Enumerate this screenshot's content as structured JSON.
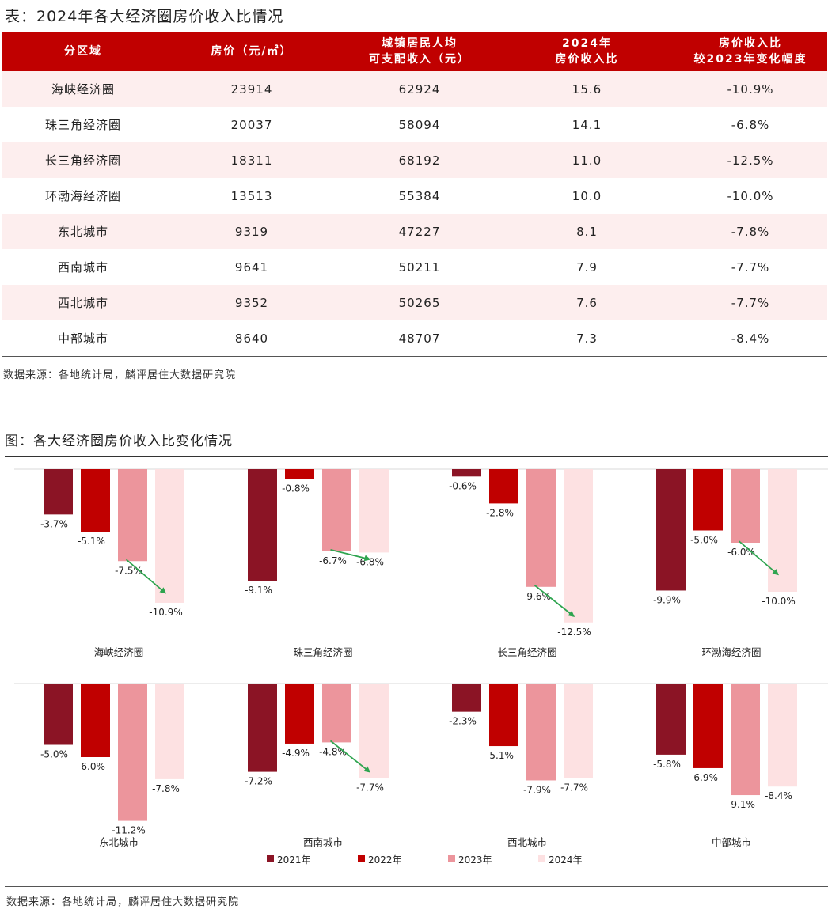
{
  "table": {
    "title": "表：2024年各大经济圈房价收入比情况",
    "headers": [
      "分区域",
      "房价（元/㎡）",
      "城镇居民人均\n可支配收入（元）",
      "2024年\n房价收入比",
      "房价收入比\n较2023年变化幅度"
    ],
    "rows": [
      [
        "海峡经济圈",
        "23914",
        "62924",
        "15.6",
        "-10.9%"
      ],
      [
        "珠三角经济圈",
        "20037",
        "58094",
        "14.1",
        "-6.8%"
      ],
      [
        "长三角经济圈",
        "18311",
        "68192",
        "11.0",
        "-12.5%"
      ],
      [
        "环渤海经济圈",
        "13513",
        "55384",
        "10.0",
        "-10.0%"
      ],
      [
        "东北城市",
        "9319",
        "47227",
        "8.1",
        "-7.8%"
      ],
      [
        "西南城市",
        "9641",
        "50211",
        "7.9",
        "-7.7%"
      ],
      [
        "西北城市",
        "9352",
        "50265",
        "7.6",
        "-7.7%"
      ],
      [
        "中部城市",
        "8640",
        "48707",
        "7.3",
        "-8.4%"
      ]
    ],
    "source": "数据来源：各地统计局，麟评居住大数据研究院"
  },
  "chart": {
    "title": "图：各大经济圈房价收入比变化情况",
    "source": "数据来源：各地统计局，麟评居住大数据研究院"
  },
  "chart_data": {
    "type": "bar",
    "title": "图：各大经济圈房价收入比变化情况",
    "unit": "%",
    "legend_position": "bottom",
    "series": [
      {
        "name": "2021年",
        "color": "#8b1425"
      },
      {
        "name": "2022年",
        "color": "#c00000"
      },
      {
        "name": "2023年",
        "color": "#ec959c"
      },
      {
        "name": "2024年",
        "color": "#fde1e2"
      }
    ],
    "groups": [
      {
        "name": "海峡经济圈",
        "values": [
          -3.7,
          -5.1,
          -7.5,
          -10.9
        ],
        "labels": [
          "-3.7%",
          "-5.1%",
          "-7.5%",
          "-10.9%"
        ]
      },
      {
        "name": "珠三角经济圈",
        "values": [
          -9.1,
          -0.8,
          -6.7,
          -6.8
        ],
        "labels": [
          "-9.1%",
          "-0.8%",
          "-6.7%",
          "-6.8%"
        ]
      },
      {
        "name": "长三角经济圈",
        "values": [
          -0.6,
          -2.8,
          -9.6,
          -12.5
        ],
        "labels": [
          "-0.6%",
          "-2.8%",
          "-9.6%",
          "-12.5%"
        ]
      },
      {
        "name": "环渤海经济圈",
        "values": [
          -9.9,
          -5.0,
          -6.0,
          -10.0
        ],
        "labels": [
          "-9.9%",
          "-5.0%",
          "-6.0%",
          "-10.0%"
        ]
      },
      {
        "name": "东北城市",
        "values": [
          -5.0,
          -6.0,
          -11.2,
          -7.8
        ],
        "labels": [
          "-5.0%",
          "-6.0%",
          "-11.2%",
          "-7.8%"
        ]
      },
      {
        "name": "西南城市",
        "values": [
          -7.2,
          -4.9,
          -4.8,
          -7.7
        ],
        "labels": [
          "-7.2%",
          "-4.9%",
          "-4.8%",
          "-7.7%"
        ]
      },
      {
        "name": "西北城市",
        "values": [
          -2.3,
          -5.1,
          -7.9,
          -7.7
        ],
        "labels": [
          "-2.3%",
          "-5.1%",
          "-7.9%",
          "-7.7%"
        ]
      },
      {
        "name": "中部城市",
        "values": [
          -5.8,
          -6.9,
          -9.1,
          -8.4
        ],
        "labels": [
          "-5.8%",
          "-6.9%",
          "-9.1%",
          "-8.4%"
        ]
      }
    ],
    "trend_arrow_color": "#2ea44f"
  }
}
